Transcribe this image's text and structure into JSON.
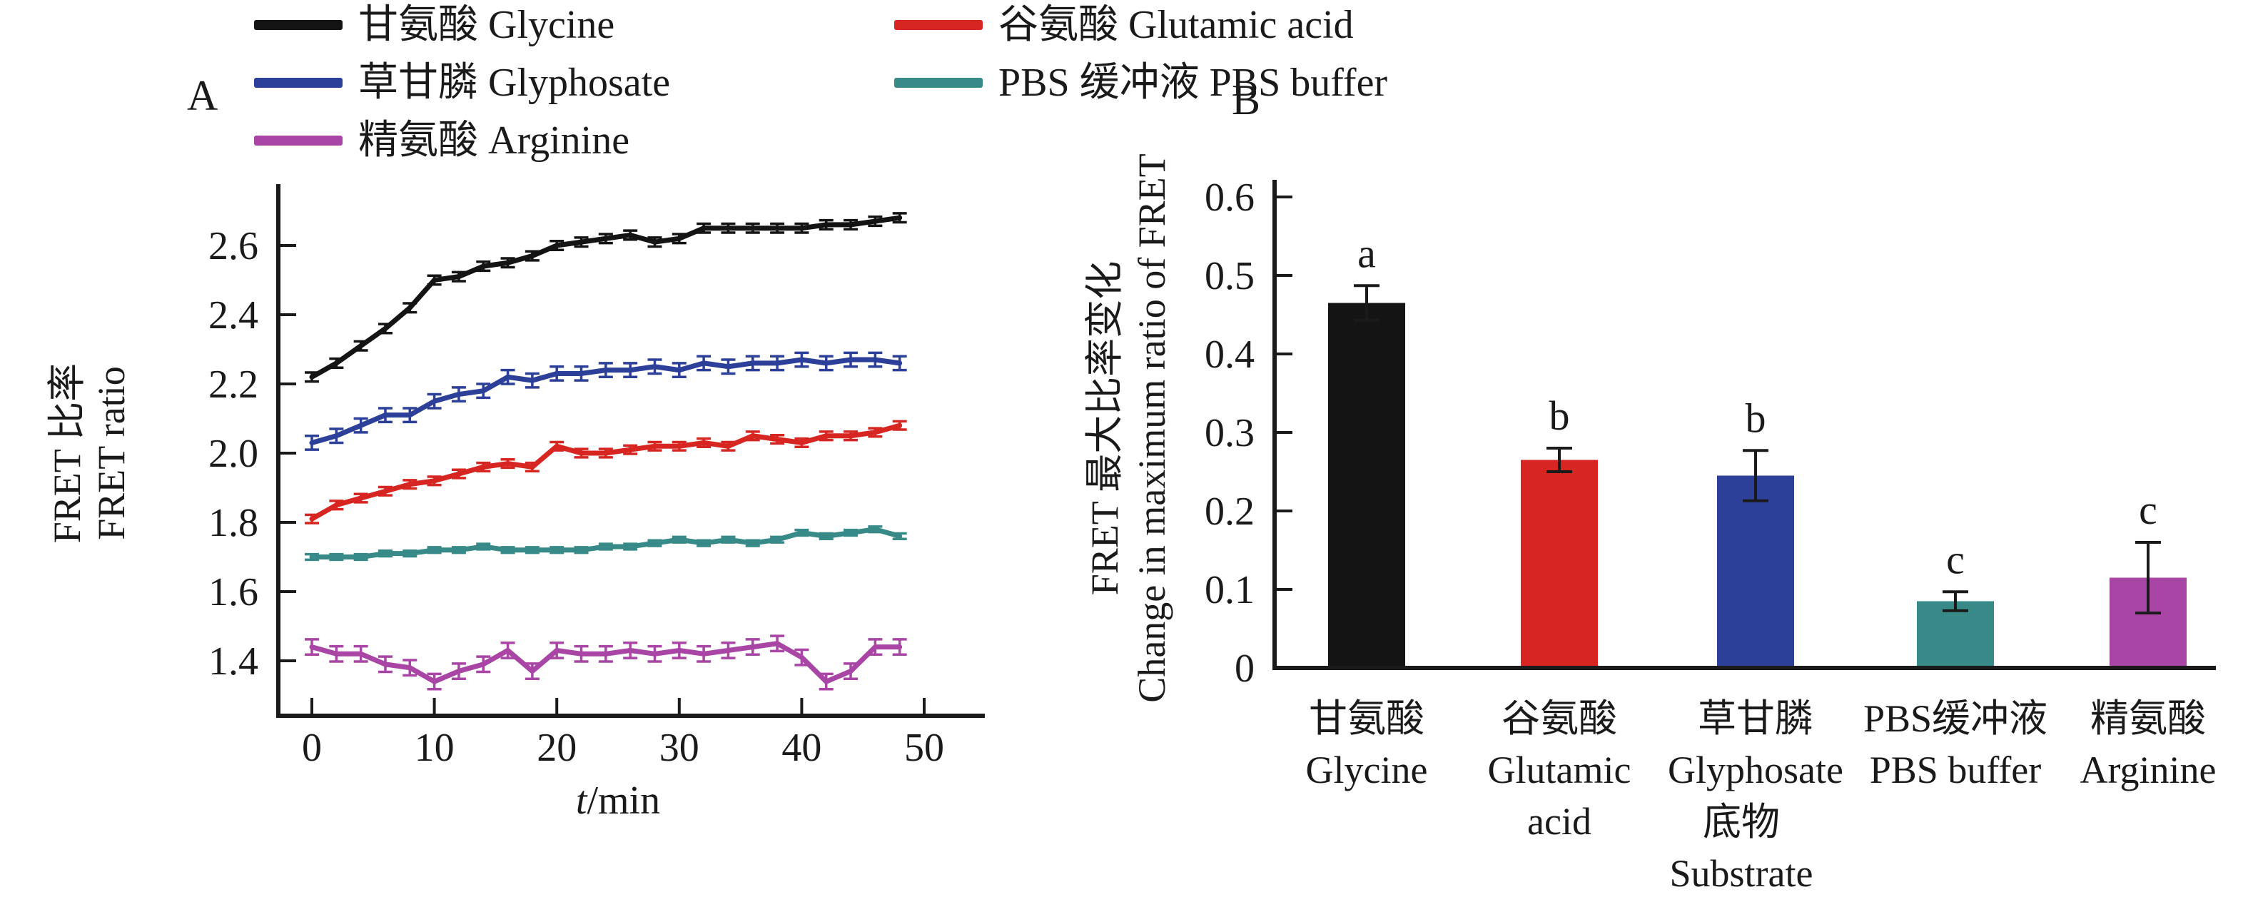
{
  "figure": {
    "panel_a_label": "A",
    "panel_b_label": "B",
    "background": "#ffffff",
    "text_color": "#1a1a1a"
  },
  "legend": {
    "columns": 2,
    "items": [
      {
        "id": "glycine",
        "label": "甘氨酸 Glycine",
        "color": "#141414"
      },
      {
        "id": "glutamic-acid",
        "label": "谷氨酸 Glutamic acid",
        "color": "#d72622"
      },
      {
        "id": "glyphosate",
        "label": "草甘膦 Glyphosate",
        "color": "#2c3f99"
      },
      {
        "id": "pbs-buffer",
        "label": "PBS 缓冲液 PBS buffer",
        "color": "#378a88"
      },
      {
        "id": "arginine",
        "label": "精氨酸 Arginine",
        "color": "#a845a5"
      }
    ]
  },
  "chart_data": [
    {
      "id": "panel-a",
      "type": "line",
      "panel_label": "A",
      "xlabel": "t/min",
      "ylabel_lines": [
        "FRET 比率",
        "FRET ratio"
      ],
      "xticks": [
        0,
        10,
        20,
        30,
        40,
        50
      ],
      "yticks": [
        1.4,
        1.6,
        1.8,
        2.0,
        2.2,
        2.4,
        2.6
      ],
      "xlim": [
        -2.7,
        55
      ],
      "ylim": [
        1.24,
        2.78
      ],
      "x": [
        0,
        2,
        4,
        6,
        8,
        10,
        12,
        14,
        16,
        18,
        20,
        22,
        24,
        26,
        28,
        30,
        32,
        34,
        36,
        38,
        40,
        42,
        44,
        46,
        48
      ],
      "series": [
        {
          "id": "glycine",
          "name": "甘氨酸 Glycine",
          "color": "#141414",
          "error": 0.013,
          "values": [
            2.22,
            2.26,
            2.31,
            2.36,
            2.42,
            2.5,
            2.51,
            2.54,
            2.55,
            2.57,
            2.6,
            2.61,
            2.62,
            2.63,
            2.61,
            2.62,
            2.65,
            2.65,
            2.65,
            2.65,
            2.65,
            2.66,
            2.66,
            2.67,
            2.68
          ]
        },
        {
          "id": "glyphosate",
          "name": "草甘膦 Glyphosate",
          "color": "#2c3f99",
          "error": 0.02,
          "values": [
            2.03,
            2.05,
            2.08,
            2.11,
            2.11,
            2.15,
            2.17,
            2.18,
            2.22,
            2.21,
            2.23,
            2.23,
            2.24,
            2.24,
            2.25,
            2.24,
            2.26,
            2.25,
            2.26,
            2.26,
            2.27,
            2.26,
            2.27,
            2.27,
            2.26
          ]
        },
        {
          "id": "glutamic-acid",
          "name": "谷氨酸 Glutamic acid",
          "color": "#d72622",
          "error": 0.012,
          "values": [
            1.81,
            1.85,
            1.87,
            1.89,
            1.91,
            1.92,
            1.94,
            1.96,
            1.97,
            1.96,
            2.02,
            2.0,
            2.0,
            2.01,
            2.02,
            2.02,
            2.03,
            2.02,
            2.05,
            2.04,
            2.03,
            2.05,
            2.05,
            2.06,
            2.08
          ]
        },
        {
          "id": "pbs-buffer",
          "name": "PBS 缓冲液 PBS buffer",
          "color": "#378a88",
          "error": 0.008,
          "values": [
            1.7,
            1.7,
            1.7,
            1.71,
            1.71,
            1.72,
            1.72,
            1.73,
            1.72,
            1.72,
            1.72,
            1.72,
            1.73,
            1.73,
            1.74,
            1.75,
            1.74,
            1.75,
            1.74,
            1.75,
            1.77,
            1.76,
            1.77,
            1.78,
            1.76
          ]
        },
        {
          "id": "arginine",
          "name": "精氨酸 Arginine",
          "color": "#a845a5",
          "error": 0.022,
          "values": [
            1.44,
            1.42,
            1.42,
            1.39,
            1.38,
            1.34,
            1.37,
            1.39,
            1.43,
            1.37,
            1.43,
            1.42,
            1.42,
            1.43,
            1.42,
            1.43,
            1.42,
            1.43,
            1.44,
            1.45,
            1.41,
            1.34,
            1.37,
            1.44,
            1.44
          ]
        }
      ]
    },
    {
      "id": "panel-b",
      "type": "bar",
      "panel_label": "B",
      "xlabel_lines": [
        "底物",
        "Substrate"
      ],
      "ylabel_lines": [
        "FRET 最大比率变化",
        "Change in maximum ratio of FRET"
      ],
      "yticks": [
        0,
        0.1,
        0.2,
        0.3,
        0.4,
        0.5,
        0.6
      ],
      "ylim": [
        0,
        0.62
      ],
      "categories": [
        {
          "id": "glycine",
          "lines": [
            "甘氨酸",
            "Glycine"
          ]
        },
        {
          "id": "glutamic-acid",
          "lines": [
            "谷氨酸",
            "Glutamic",
            "acid"
          ]
        },
        {
          "id": "glyphosate",
          "lines": [
            "草甘膦",
            "Glyphosate"
          ]
        },
        {
          "id": "pbs-buffer",
          "lines": [
            "PBS缓冲液",
            "PBS buffer"
          ]
        },
        {
          "id": "arginine",
          "lines": [
            "精氨酸",
            "Arginine"
          ]
        }
      ],
      "values": [
        0.465,
        0.265,
        0.245,
        0.085,
        0.115
      ],
      "errors": [
        0.022,
        0.015,
        0.032,
        0.012,
        0.045
      ],
      "sig_letters": [
        "a",
        "b",
        "b",
        "c",
        "c"
      ],
      "colors": [
        "#141414",
        "#d72622",
        "#2c3f99",
        "#378a88",
        "#a845a5"
      ]
    }
  ]
}
